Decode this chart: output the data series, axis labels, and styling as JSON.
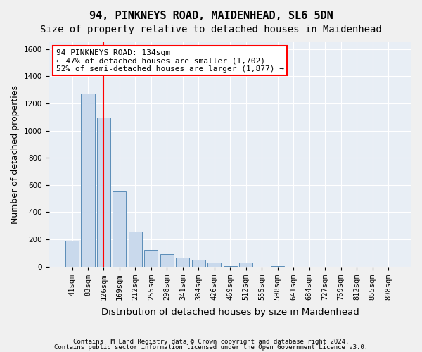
{
  "title1": "94, PINKNEYS ROAD, MAIDENHEAD, SL6 5DN",
  "title2": "Size of property relative to detached houses in Maidenhead",
  "xlabel": "Distribution of detached houses by size in Maidenhead",
  "ylabel": "Number of detached properties",
  "annotation_title": "94 PINKNEYS ROAD: 134sqm",
  "annotation_line2": "← 47% of detached houses are smaller (1,702)",
  "annotation_line3": "52% of semi-detached houses are larger (1,877) →",
  "footer1": "Contains HM Land Registry data © Crown copyright and database right 2024.",
  "footer2": "Contains public sector information licensed under the Open Government Licence v3.0.",
  "bins": [
    "41sqm",
    "83sqm",
    "126sqm",
    "169sqm",
    "212sqm",
    "255sqm",
    "298sqm",
    "341sqm",
    "384sqm",
    "426sqm",
    "469sqm",
    "512sqm",
    "555sqm",
    "598sqm",
    "641sqm",
    "684sqm",
    "727sqm",
    "769sqm",
    "812sqm",
    "855sqm",
    "898sqm"
  ],
  "values": [
    190,
    1270,
    1095,
    550,
    255,
    120,
    90,
    65,
    50,
    30,
    5,
    30,
    0,
    5,
    0,
    0,
    0,
    0,
    0,
    0,
    0
  ],
  "bar_color": "#c9d9ec",
  "bar_edge_color": "#5b8db8",
  "property_line_x": 2.0,
  "property_line_color": "red",
  "annotation_box_color": "white",
  "annotation_box_edge": "red",
  "ylim": [
    0,
    1650
  ],
  "yticks": [
    0,
    200,
    400,
    600,
    800,
    1000,
    1200,
    1400,
    1600
  ],
  "background_color": "#e8eef5",
  "grid_color": "white",
  "title_fontsize": 11,
  "subtitle_fontsize": 10,
  "axis_label_fontsize": 9,
  "tick_fontsize": 7.5,
  "annotation_fontsize": 8
}
